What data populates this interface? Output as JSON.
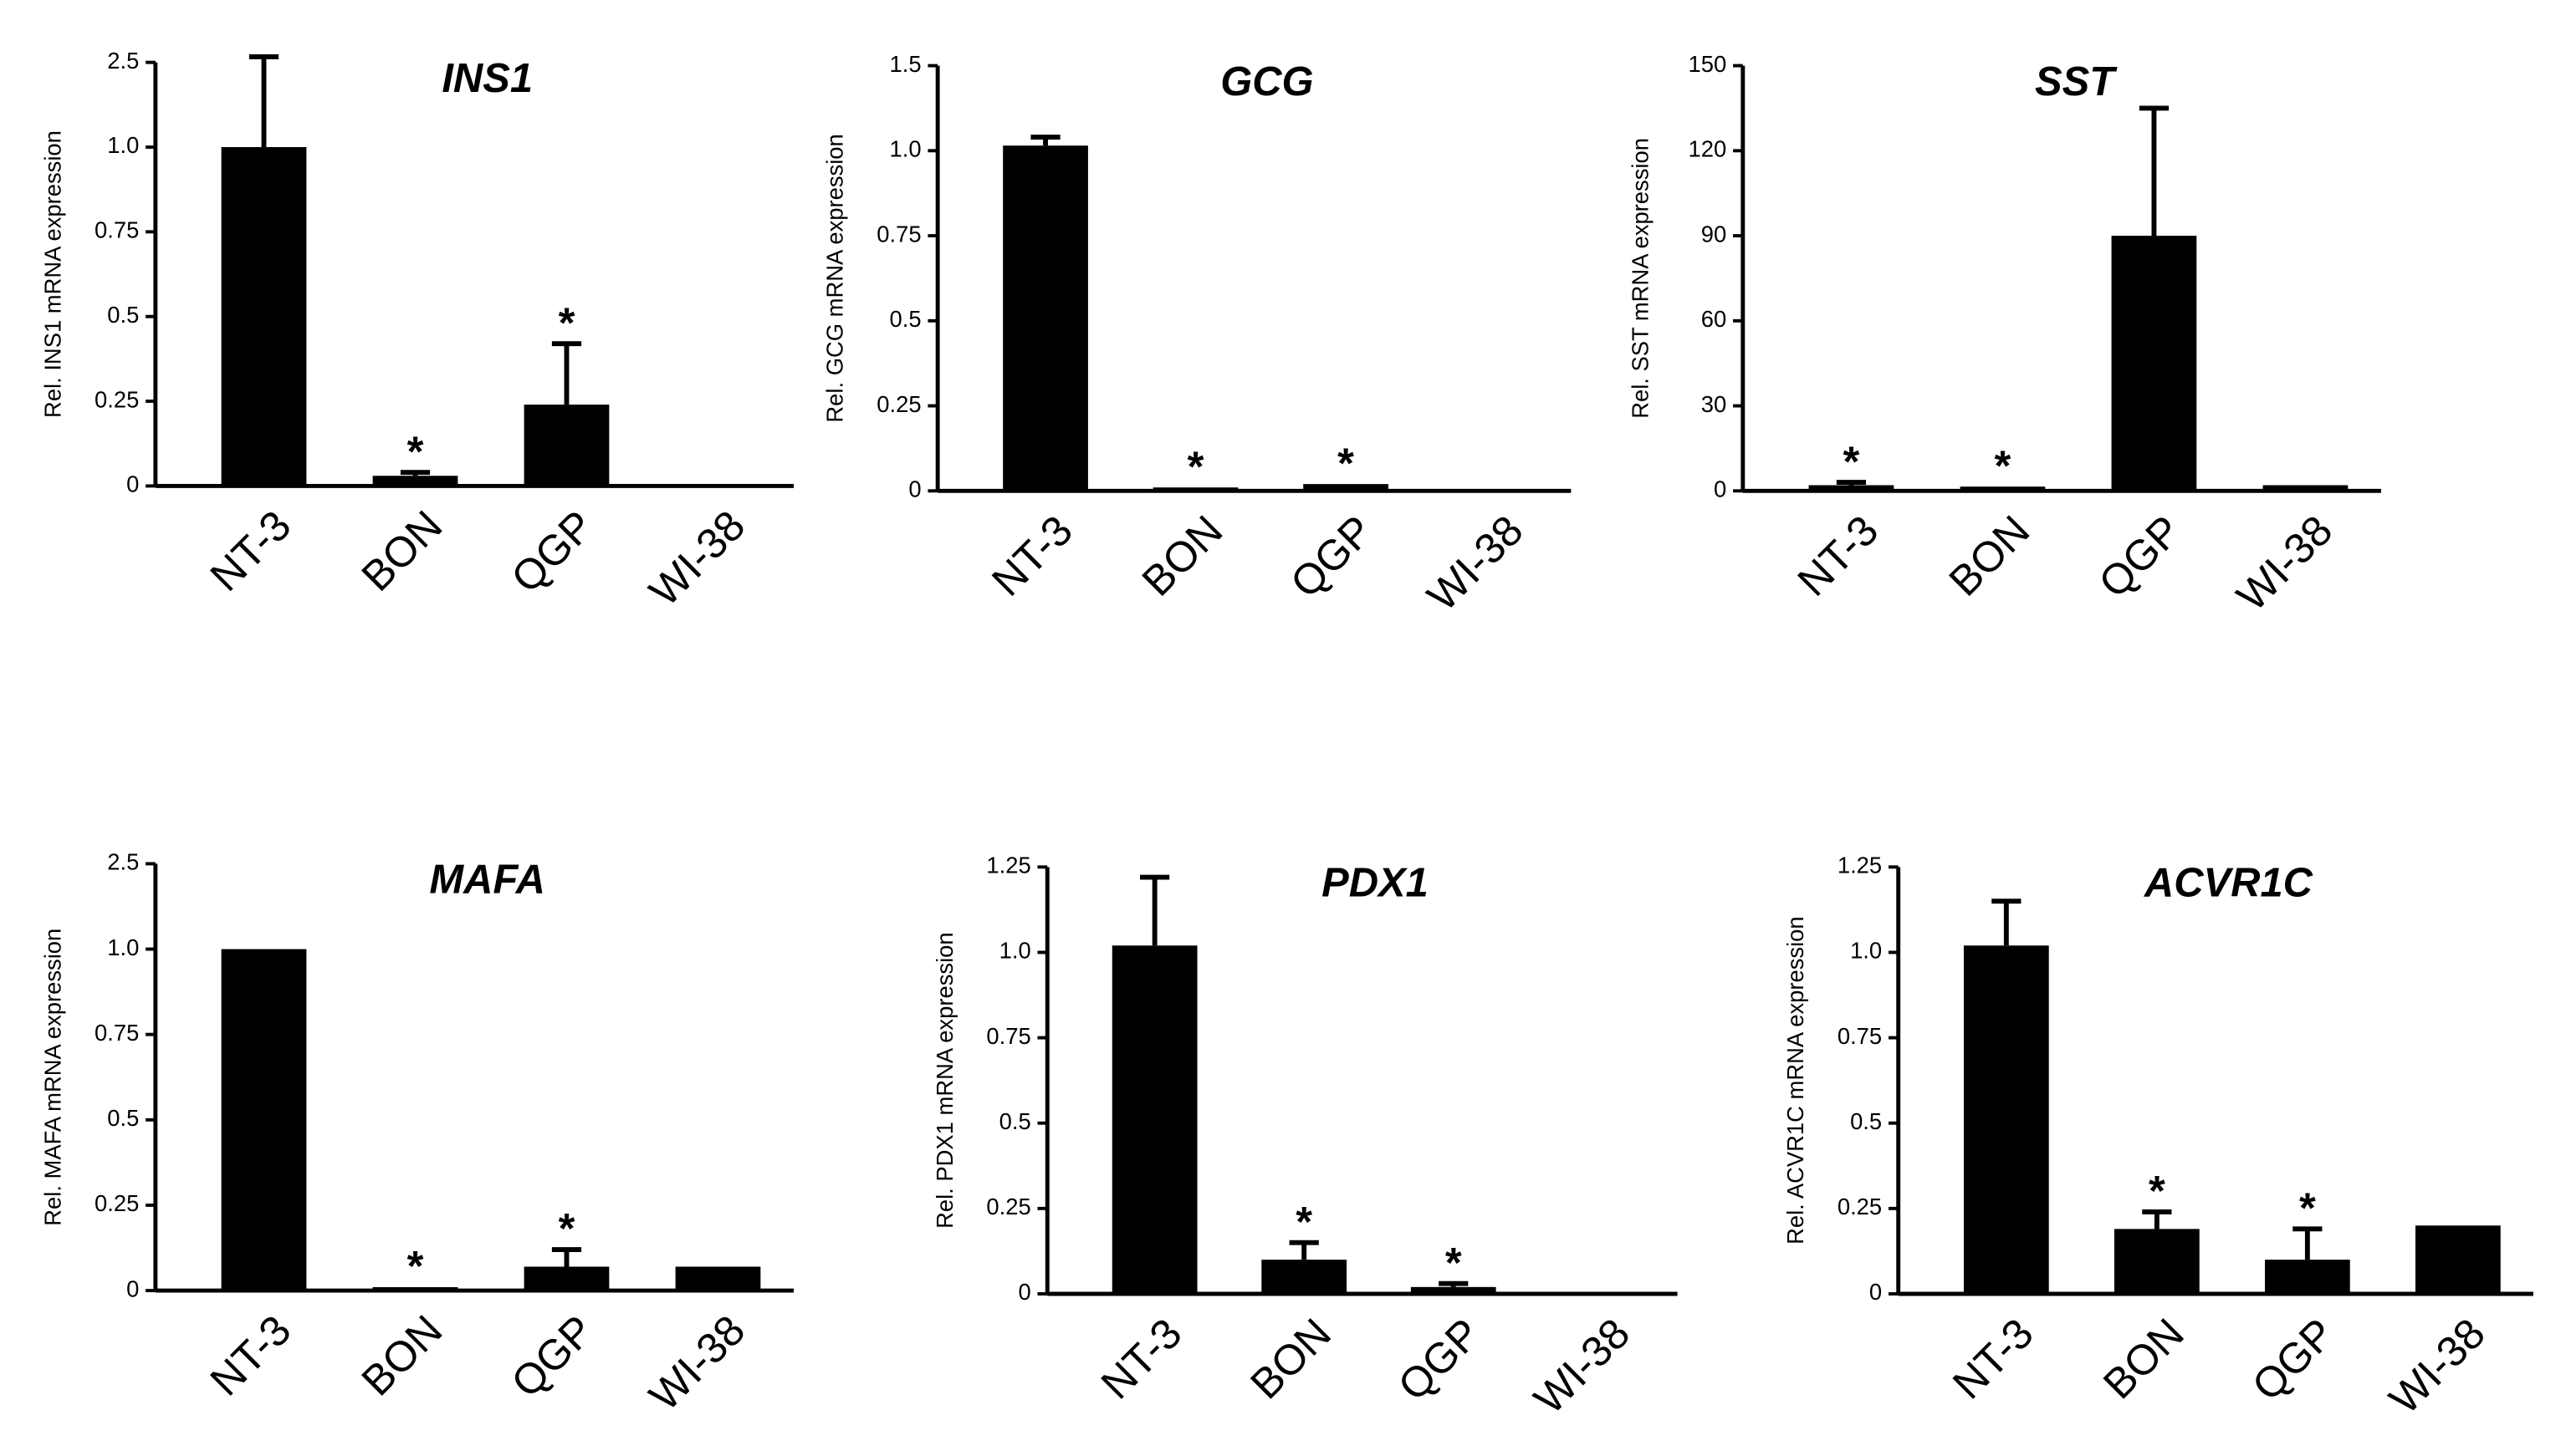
{
  "chart_data": [
    {
      "type": "bar",
      "title": "INS1",
      "ylabel": "Rel. INS1 mRNA expression",
      "color": "#000000",
      "categories": [
        "NT-3",
        "BON",
        "QGP",
        "WI-38"
      ],
      "values": [
        1.0,
        0.03,
        0.24,
        0
      ],
      "errors": [
        1.6,
        0.01,
        0.18,
        null
      ],
      "markers": [
        null,
        "*",
        "*",
        null
      ],
      "ylim": [
        0,
        2.5
      ],
      "yticks": [
        0,
        0.25,
        0.5,
        0.75,
        {
          "value": 1.0,
          "label": "1.0"
        },
        2.5
      ]
    },
    {
      "type": "bar",
      "title": "GCG",
      "ylabel": "Rel. GCG mRNA expression",
      "color": "#000000",
      "categories": [
        "NT-3",
        "BON",
        "QGP",
        "WI-38"
      ],
      "values": [
        1.03,
        0.01,
        0.02,
        0
      ],
      "errors": [
        0.05,
        null,
        null,
        null
      ],
      "markers": [
        null,
        "*",
        "*",
        null
      ],
      "ylim": [
        0,
        1.5
      ],
      "yticks": [
        0,
        0.25,
        0.5,
        0.75,
        {
          "value": 1.0,
          "label": "1.0"
        },
        1.5
      ]
    },
    {
      "type": "bar",
      "title": "SST",
      "ylabel": "Rel. SST mRNA expression",
      "color": "#000000",
      "categories": [
        "NT-3",
        "BON",
        "QGP",
        "WI-38"
      ],
      "values": [
        2,
        1.5,
        90,
        2
      ],
      "errors": [
        1,
        null,
        45,
        null
      ],
      "markers": [
        "*",
        "*",
        null,
        null
      ],
      "ylim": [
        0,
        150
      ],
      "yticks": [
        0,
        30,
        60,
        90,
        120,
        150
      ]
    },
    {
      "type": "bar",
      "title": "MAFA",
      "ylabel": "Rel. MAFA mRNA expression",
      "color": "#000000",
      "categories": [
        "NT-3",
        "BON",
        "QGP",
        "WI-38"
      ],
      "values": [
        1.0,
        0.01,
        0.07,
        0.07
      ],
      "errors": [
        null,
        null,
        0.05,
        null
      ],
      "markers": [
        null,
        "*",
        "*",
        null
      ],
      "ylim": [
        0,
        2.5
      ],
      "yticks": [
        0,
        0.25,
        0.5,
        0.75,
        {
          "value": 1.0,
          "label": "1.0"
        },
        2.5
      ]
    },
    {
      "type": "bar",
      "title": "PDX1",
      "ylabel": "Rel. PDX1 mRNA expression",
      "color": "#000000",
      "categories": [
        "NT-3",
        "BON",
        "QGP",
        "WI-38"
      ],
      "values": [
        1.02,
        0.1,
        0.02,
        0
      ],
      "errors": [
        0.2,
        0.05,
        0.01,
        null
      ],
      "markers": [
        null,
        "*",
        "*",
        null
      ],
      "ylim": [
        0,
        1.25
      ],
      "yticks": [
        0,
        0.25,
        0.5,
        0.75,
        {
          "value": 1.0,
          "label": "1.0"
        },
        1.25
      ]
    },
    {
      "type": "bar",
      "title": "ACVR1C",
      "ylabel": "Rel. ACVR1C mRNA expression",
      "color": "#000000",
      "categories": [
        "NT-3",
        "BON",
        "QGP",
        "WI-38"
      ],
      "values": [
        1.02,
        0.19,
        0.1,
        0.2
      ],
      "errors": [
        0.13,
        0.05,
        0.09,
        null
      ],
      "markers": [
        null,
        "*",
        "*",
        null
      ],
      "ylim": [
        0,
        1.25
      ],
      "yticks": [
        0,
        0.25,
        0.5,
        0.75,
        {
          "value": 1.0,
          "label": "1.0"
        },
        1.25
      ]
    }
  ]
}
